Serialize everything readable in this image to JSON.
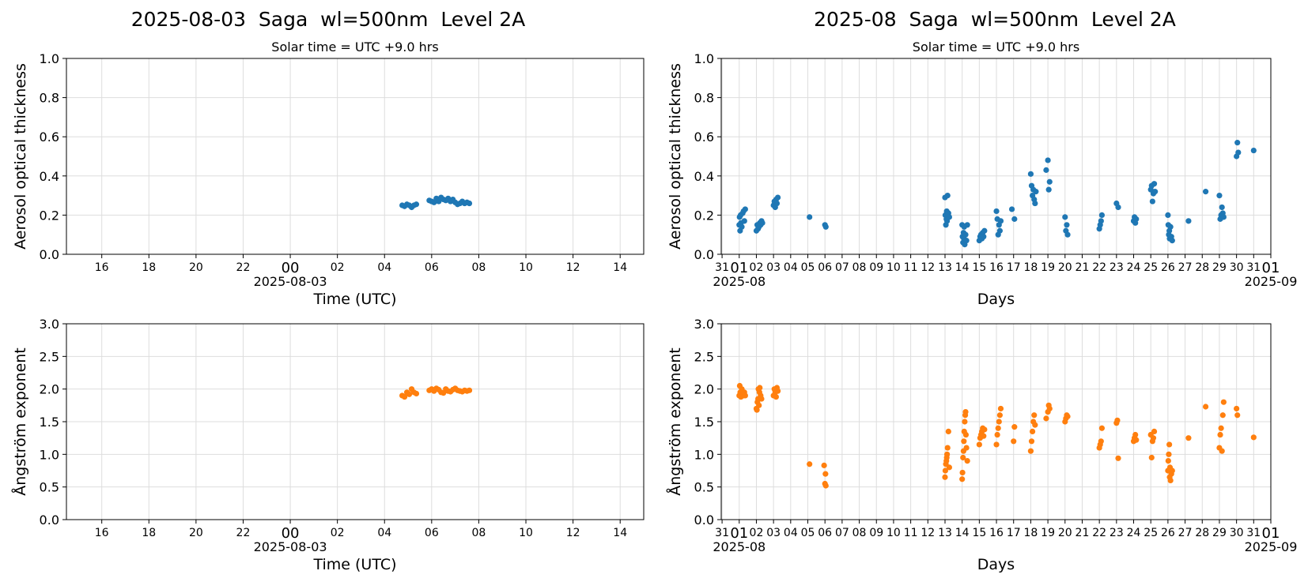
{
  "figure": {
    "left_title": "2025-08-03  Saga  wl=500nm  Level 2A",
    "right_title": "2025-08  Saga  wl=500nm  Level 2A",
    "solar_time_note": "Solar time = UTC +9.0 hrs"
  },
  "colors": {
    "aot": "#1f77b4",
    "angstrom": "#ff7f0e",
    "grid": "#dddddd"
  },
  "chart_data": [
    {
      "id": "daily-aot",
      "type": "scatter",
      "title": "Solar time = UTC +9.0 hrs",
      "ylabel": "Aerosol optical thickness",
      "xlabel": "Time (UTC)",
      "x_date_label": "2025-08-03",
      "x_unit": "hours relative to 2025-08-03 00:00 UTC",
      "xlim": [
        -9.5,
        15
      ],
      "ylim": [
        0,
        1.0
      ],
      "yticks": [
        0,
        0.2,
        0.4,
        0.6,
        0.8,
        1.0
      ],
      "ytick_labels": [
        "0.0",
        "0.2",
        "0.4",
        "0.6",
        "0.8",
        "1.0"
      ],
      "xtick_labels": [
        "16",
        "18",
        "20",
        "22",
        "00",
        "02",
        "04",
        "06",
        "08",
        "10",
        "12",
        "14"
      ],
      "grid": true,
      "color": "#1f77b4",
      "series": [
        {
          "x": [
            4.75,
            4.85,
            4.95,
            5.05,
            5.15,
            5.25,
            5.35,
            5.9,
            6.0,
            6.1,
            6.2,
            6.3,
            6.4,
            6.5,
            6.6,
            6.7,
            6.8,
            6.9,
            7.0,
            7.1,
            7.2,
            7.3,
            7.4,
            7.5,
            7.6
          ],
          "y": [
            0.25,
            0.245,
            0.255,
            0.25,
            0.24,
            0.25,
            0.255,
            0.275,
            0.27,
            0.265,
            0.285,
            0.27,
            0.29,
            0.28,
            0.275,
            0.285,
            0.27,
            0.28,
            0.265,
            0.255,
            0.26,
            0.27,
            0.26,
            0.265,
            0.26
          ]
        }
      ]
    },
    {
      "id": "monthly-aot",
      "type": "scatter",
      "title": "Solar time = UTC +9.0 hrs",
      "ylabel": "Aerosol optical thickness",
      "xlabel": "Days",
      "x_start_label": "2025-08",
      "x_end_label": "2025-09",
      "x_unit": "day of August 2025 (0 = July 31)",
      "xlim": [
        -0.05,
        32
      ],
      "ylim": [
        0,
        1.0
      ],
      "yticks": [
        0,
        0.2,
        0.4,
        0.6,
        0.8,
        1.0
      ],
      "ytick_labels": [
        "0.0",
        "0.2",
        "0.4",
        "0.6",
        "0.8",
        "1.0"
      ],
      "xtick_labels": [
        "31",
        "01",
        "02",
        "03",
        "04",
        "05",
        "06",
        "07",
        "08",
        "09",
        "10",
        "11",
        "12",
        "13",
        "14",
        "15",
        "16",
        "17",
        "18",
        "19",
        "20",
        "21",
        "22",
        "23",
        "24",
        "25",
        "26",
        "27",
        "28",
        "29",
        "30",
        "31",
        "01"
      ],
      "grid": true,
      "color": "#1f77b4",
      "series": [
        {
          "x": [
            1.0,
            1.02,
            1.05,
            1.08,
            1.1,
            1.15,
            1.2,
            1.25,
            1.3,
            1.35,
            2.0,
            2.05,
            2.1,
            2.15,
            2.2,
            2.25,
            2.3,
            2.35,
            3.0,
            3.05,
            3.1,
            3.15,
            3.2,
            3.25,
            5.1,
            6.0,
            6.05,
            13.0,
            13.02,
            13.05,
            13.08,
            13.1,
            13.12,
            13.15,
            13.2,
            13.25,
            14.0,
            14.02,
            14.05,
            14.08,
            14.1,
            14.12,
            14.15,
            14.2,
            14.25,
            14.3,
            15.0,
            15.05,
            15.1,
            15.15,
            15.2,
            15.25,
            15.3,
            16.0,
            16.05,
            16.1,
            16.15,
            16.2,
            16.25,
            16.9,
            17.05,
            18.0,
            18.05,
            18.1,
            18.15,
            18.2,
            18.25,
            18.3,
            18.9,
            19.0,
            19.05,
            19.1,
            20.0,
            20.05,
            20.1,
            20.15,
            22.0,
            22.05,
            22.1,
            22.15,
            23.0,
            23.1,
            24.0,
            24.05,
            24.1,
            24.15,
            25.0,
            25.05,
            25.1,
            25.15,
            25.2,
            25.25,
            26.0,
            26.02,
            26.05,
            26.08,
            26.1,
            26.15,
            26.2,
            26.25,
            27.2,
            28.2,
            29.0,
            29.05,
            29.1,
            29.15,
            29.2,
            29.25,
            30.0,
            30.05,
            30.1,
            31.0
          ],
          "y": [
            0.15,
            0.19,
            0.12,
            0.2,
            0.16,
            0.14,
            0.21,
            0.22,
            0.17,
            0.23,
            0.12,
            0.15,
            0.13,
            0.14,
            0.16,
            0.15,
            0.17,
            0.16,
            0.25,
            0.27,
            0.24,
            0.28,
            0.26,
            0.29,
            0.19,
            0.15,
            0.14,
            0.29,
            0.2,
            0.15,
            0.18,
            0.22,
            0.17,
            0.3,
            0.21,
            0.19,
            0.15,
            0.09,
            0.06,
            0.11,
            0.08,
            0.14,
            0.05,
            0.1,
            0.07,
            0.15,
            0.07,
            0.09,
            0.1,
            0.08,
            0.11,
            0.09,
            0.12,
            0.22,
            0.18,
            0.1,
            0.15,
            0.12,
            0.17,
            0.23,
            0.18,
            0.41,
            0.35,
            0.3,
            0.33,
            0.28,
            0.26,
            0.32,
            0.43,
            0.48,
            0.33,
            0.37,
            0.19,
            0.12,
            0.15,
            0.1,
            0.13,
            0.15,
            0.17,
            0.2,
            0.26,
            0.24,
            0.17,
            0.19,
            0.16,
            0.18,
            0.33,
            0.35,
            0.27,
            0.31,
            0.36,
            0.32,
            0.2,
            0.15,
            0.1,
            0.12,
            0.08,
            0.14,
            0.09,
            0.07,
            0.17,
            0.32,
            0.3,
            0.18,
            0.2,
            0.24,
            0.21,
            0.19,
            0.5,
            0.57,
            0.52,
            0.53
          ]
        }
      ]
    },
    {
      "id": "daily-angstrom",
      "type": "scatter",
      "ylabel": "Ångström exponent",
      "xlabel": "Time (UTC)",
      "x_date_label": "2025-08-03",
      "x_unit": "hours relative to 2025-08-03 00:00 UTC",
      "xlim": [
        -9.5,
        15
      ],
      "ylim": [
        0,
        3.0
      ],
      "yticks": [
        0,
        0.5,
        1.0,
        1.5,
        2.0,
        2.5,
        3.0
      ],
      "ytick_labels": [
        "0.0",
        "0.5",
        "1.0",
        "1.5",
        "2.0",
        "2.5",
        "3.0"
      ],
      "xtick_labels": [
        "16",
        "18",
        "20",
        "22",
        "00",
        "02",
        "04",
        "06",
        "08",
        "10",
        "12",
        "14"
      ],
      "grid": true,
      "color": "#ff7f0e",
      "series": [
        {
          "x": [
            4.75,
            4.85,
            4.95,
            5.05,
            5.15,
            5.25,
            5.35,
            5.9,
            6.0,
            6.1,
            6.2,
            6.3,
            6.4,
            6.5,
            6.6,
            6.7,
            6.8,
            6.9,
            7.0,
            7.1,
            7.2,
            7.3,
            7.4,
            7.5,
            7.6
          ],
          "y": [
            1.9,
            1.88,
            1.95,
            1.92,
            2.0,
            1.95,
            1.93,
            1.98,
            2.0,
            1.97,
            2.01,
            1.99,
            1.95,
            1.94,
            2.0,
            1.97,
            1.96,
            1.99,
            2.01,
            1.98,
            1.97,
            1.96,
            1.98,
            1.97,
            1.98
          ]
        }
      ]
    },
    {
      "id": "monthly-angstrom",
      "type": "scatter",
      "ylabel": "Ångström exponent",
      "xlabel": "Days",
      "x_start_label": "2025-08",
      "x_end_label": "2025-09",
      "x_unit": "day of August 2025 (0 = July 31)",
      "xlim": [
        -0.05,
        32
      ],
      "ylim": [
        0,
        3.0
      ],
      "yticks": [
        0,
        0.5,
        1.0,
        1.5,
        2.0,
        2.5,
        3.0
      ],
      "ytick_labels": [
        "0.0",
        "0.5",
        "1.0",
        "1.5",
        "2.0",
        "2.5",
        "3.0"
      ],
      "xtick_labels": [
        "31",
        "01",
        "02",
        "03",
        "04",
        "05",
        "06",
        "07",
        "08",
        "09",
        "10",
        "11",
        "12",
        "13",
        "14",
        "15",
        "16",
        "17",
        "18",
        "19",
        "20",
        "21",
        "22",
        "23",
        "24",
        "25",
        "26",
        "27",
        "28",
        "29",
        "30",
        "31",
        "01"
      ],
      "grid": true,
      "color": "#ff7f0e",
      "series": [
        {
          "x": [
            1.0,
            1.03,
            1.06,
            1.1,
            1.15,
            1.2,
            1.25,
            1.3,
            1.35,
            2.0,
            2.03,
            2.06,
            2.1,
            2.12,
            2.15,
            2.18,
            2.2,
            2.25,
            2.3,
            3.0,
            3.05,
            3.1,
            3.15,
            3.2,
            3.25,
            5.1,
            5.95,
            6.0,
            6.03,
            6.05,
            13.0,
            13.02,
            13.05,
            13.08,
            13.1,
            13.12,
            13.15,
            13.2,
            13.25,
            14.0,
            14.02,
            14.05,
            14.08,
            14.1,
            14.12,
            14.15,
            14.18,
            14.2,
            14.22,
            14.25,
            14.3,
            15.0,
            15.05,
            15.1,
            15.15,
            15.2,
            15.25,
            15.3,
            16.0,
            16.05,
            16.1,
            16.15,
            16.2,
            16.25,
            17.0,
            17.05,
            18.0,
            18.05,
            18.1,
            18.15,
            18.2,
            18.25,
            18.9,
            19.0,
            19.05,
            19.1,
            20.0,
            20.05,
            20.1,
            20.15,
            22.0,
            22.05,
            22.1,
            22.15,
            23.0,
            23.05,
            23.1,
            24.0,
            24.05,
            24.1,
            24.15,
            25.0,
            25.05,
            25.1,
            25.15,
            25.2,
            26.0,
            26.02,
            26.05,
            26.08,
            26.1,
            26.12,
            26.15,
            26.2,
            26.25,
            27.2,
            28.2,
            29.0,
            29.05,
            29.1,
            29.15,
            29.2,
            29.25,
            30.0,
            30.05,
            31.0
          ],
          "y": [
            1.9,
            2.05,
            1.95,
            1.88,
            2.0,
            1.92,
            1.9,
            1.95,
            1.9,
            1.7,
            1.68,
            1.8,
            1.85,
            2.0,
            1.75,
            1.95,
            2.02,
            1.9,
            1.85,
            1.9,
            2.0,
            1.95,
            1.88,
            2.02,
            1.97,
            0.85,
            0.83,
            0.55,
            0.7,
            0.52,
            0.65,
            0.75,
            0.85,
            0.9,
            0.95,
            1.0,
            1.1,
            1.35,
            0.8,
            0.62,
            0.72,
            0.95,
            1.05,
            1.2,
            1.35,
            1.5,
            1.6,
            1.65,
            1.3,
            1.1,
            0.9,
            1.15,
            1.25,
            1.3,
            1.35,
            1.4,
            1.28,
            1.38,
            1.15,
            1.3,
            1.4,
            1.5,
            1.6,
            1.7,
            1.2,
            1.42,
            1.05,
            1.2,
            1.35,
            1.5,
            1.6,
            1.45,
            1.55,
            1.65,
            1.75,
            1.7,
            1.5,
            1.55,
            1.6,
            1.58,
            1.1,
            1.15,
            1.2,
            1.4,
            1.48,
            1.52,
            0.94,
            1.2,
            1.25,
            1.3,
            1.22,
            1.3,
            0.95,
            1.2,
            1.25,
            1.35,
            0.75,
            0.9,
            1.0,
            1.15,
            0.65,
            0.8,
            0.6,
            0.7,
            0.75,
            1.25,
            1.73,
            1.1,
            1.3,
            1.4,
            1.05,
            1.6,
            1.8,
            1.7,
            1.6,
            1.26
          ]
        }
      ]
    }
  ]
}
